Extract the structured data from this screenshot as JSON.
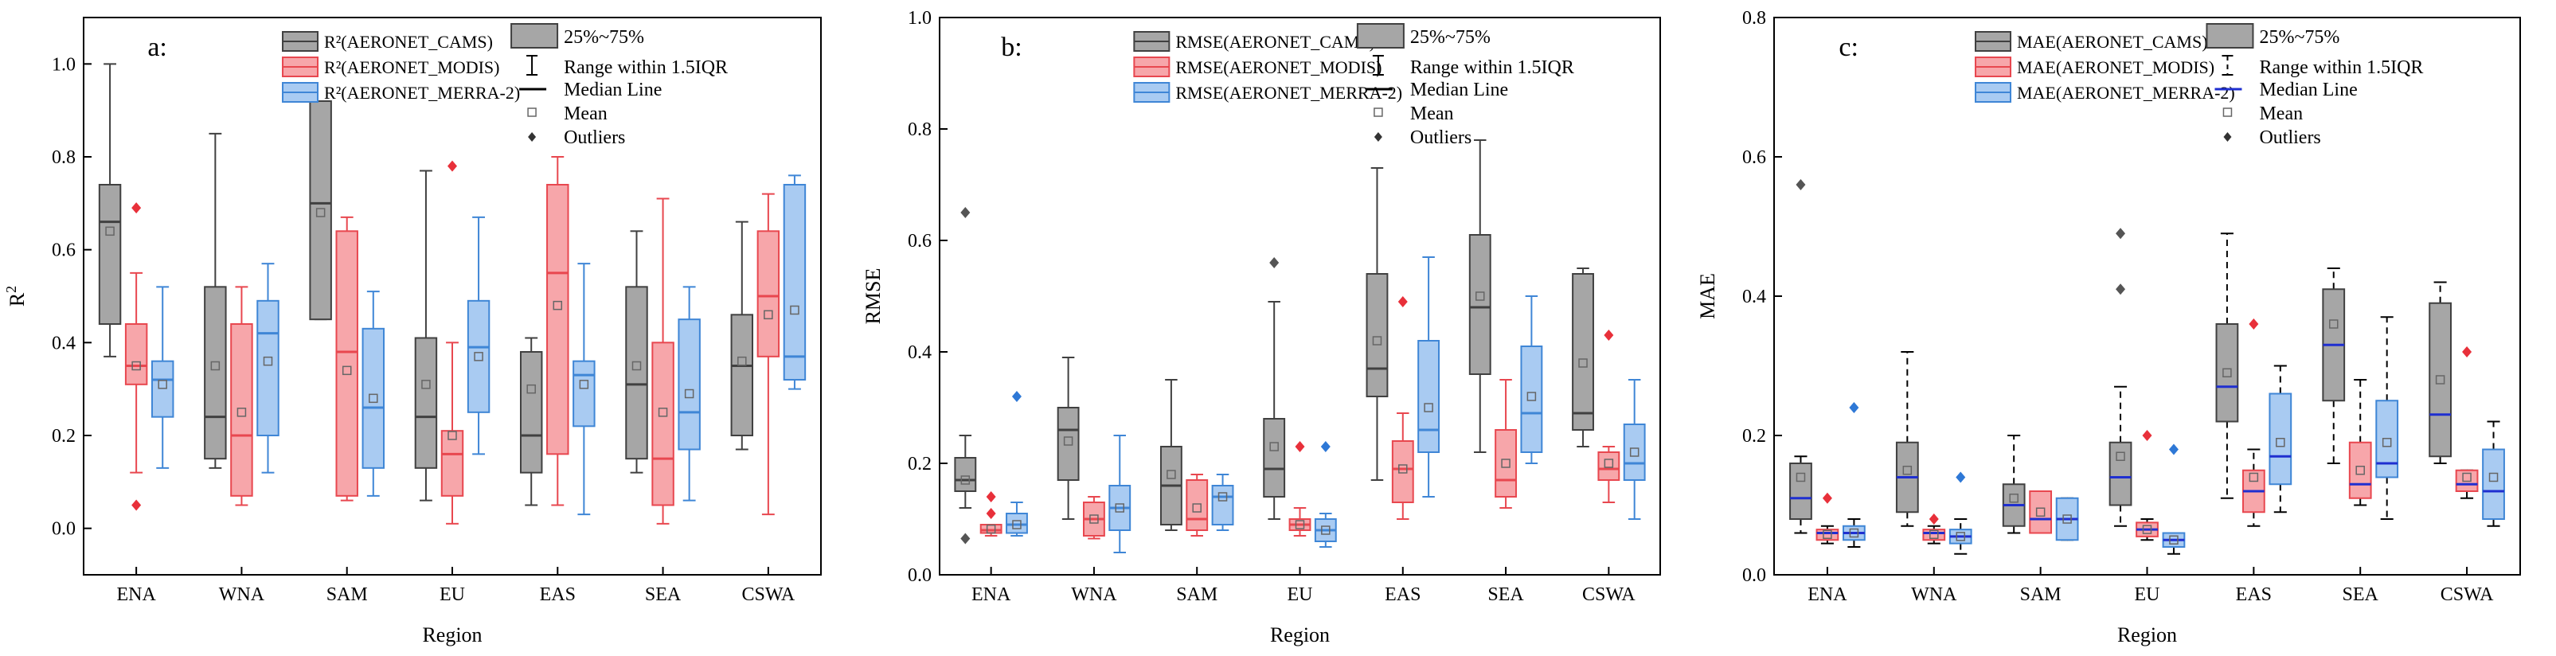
{
  "figure": {
    "xlabel": "Region",
    "regions": [
      "ENA",
      "WNA",
      "SAM",
      "EU",
      "EAS",
      "SEA",
      "CSWA"
    ],
    "legend_keys": {
      "box": "25%~75%",
      "whisker": "Range within 1.5IQR",
      "median": "Median Line",
      "mean": "Mean",
      "outlier": "Outliers"
    }
  },
  "colors": {
    "cams_fill": "#a6a6a6",
    "cams_edge": "#404040",
    "modis_fill": "#f7a6aa",
    "modis_edge": "#e8474f",
    "merra_fill": "#a9cbf2",
    "merra_edge": "#3f86d6",
    "outlier_cams": "#555555",
    "outlier_modis": "#e8303a",
    "outlier_merra": "#2e78d6",
    "median_blue": "#1f2fd0"
  },
  "chart_data": [
    {
      "type": "box",
      "panel_label": "a:",
      "ylabel": "R",
      "ylabel_sup": "2",
      "ylim": [
        -0.1,
        1.1
      ],
      "yticks": [
        "0.0",
        "0.2",
        "0.4",
        "0.6",
        "0.8",
        "1.0"
      ],
      "whisker_style": "solid",
      "median_color": "dark",
      "series_names": [
        "R²(AERONET_CAMS)",
        "R²(AERONET_MODIS)",
        "R²(AERONET_MERRA-2)"
      ],
      "series": [
        {
          "name": "CAMS",
          "boxes": [
            {
              "min": 0.37,
              "q1": 0.44,
              "med": 0.66,
              "q3": 0.74,
              "max": 1.0,
              "mean": 0.64,
              "outliers": []
            },
            {
              "min": 0.13,
              "q1": 0.15,
              "med": 0.24,
              "q3": 0.52,
              "max": 0.85,
              "mean": 0.35,
              "outliers": []
            },
            {
              "min": 0.45,
              "q1": 0.45,
              "med": 0.7,
              "q3": 0.92,
              "max": 0.92,
              "mean": 0.68,
              "outliers": []
            },
            {
              "min": 0.06,
              "q1": 0.13,
              "med": 0.24,
              "q3": 0.41,
              "max": 0.77,
              "mean": 0.31,
              "outliers": []
            },
            {
              "min": 0.05,
              "q1": 0.12,
              "med": 0.2,
              "q3": 0.38,
              "max": 0.41,
              "mean": 0.3,
              "outliers": []
            },
            {
              "min": 0.12,
              "q1": 0.15,
              "med": 0.31,
              "q3": 0.52,
              "max": 0.64,
              "mean": 0.35,
              "outliers": []
            },
            {
              "min": 0.17,
              "q1": 0.2,
              "med": 0.35,
              "q3": 0.46,
              "max": 0.66,
              "mean": 0.36,
              "outliers": []
            }
          ]
        },
        {
          "name": "MODIS",
          "boxes": [
            {
              "min": 0.12,
              "q1": 0.31,
              "med": 0.35,
              "q3": 0.44,
              "max": 0.55,
              "mean": 0.35,
              "outliers": [
                0.69,
                0.05
              ]
            },
            {
              "min": 0.05,
              "q1": 0.07,
              "med": 0.2,
              "q3": 0.44,
              "max": 0.52,
              "mean": 0.25,
              "outliers": []
            },
            {
              "min": 0.06,
              "q1": 0.07,
              "med": 0.38,
              "q3": 0.64,
              "max": 0.67,
              "mean": 0.34,
              "outliers": []
            },
            {
              "min": 0.01,
              "q1": 0.07,
              "med": 0.16,
              "q3": 0.21,
              "max": 0.4,
              "mean": 0.2,
              "outliers": [
                0.78
              ]
            },
            {
              "min": 0.05,
              "q1": 0.16,
              "med": 0.55,
              "q3": 0.74,
              "max": 0.8,
              "mean": 0.48,
              "outliers": []
            },
            {
              "min": 0.01,
              "q1": 0.05,
              "med": 0.15,
              "q3": 0.4,
              "max": 0.71,
              "mean": 0.25,
              "outliers": []
            },
            {
              "min": 0.03,
              "q1": 0.37,
              "med": 0.5,
              "q3": 0.64,
              "max": 0.72,
              "mean": 0.46,
              "outliers": []
            }
          ]
        },
        {
          "name": "MERRA-2",
          "boxes": [
            {
              "min": 0.13,
              "q1": 0.24,
              "med": 0.32,
              "q3": 0.36,
              "max": 0.52,
              "mean": 0.31,
              "outliers": []
            },
            {
              "min": 0.12,
              "q1": 0.2,
              "med": 0.42,
              "q3": 0.49,
              "max": 0.57,
              "mean": 0.36,
              "outliers": []
            },
            {
              "min": 0.07,
              "q1": 0.13,
              "med": 0.26,
              "q3": 0.43,
              "max": 0.51,
              "mean": 0.28,
              "outliers": []
            },
            {
              "min": 0.16,
              "q1": 0.25,
              "med": 0.39,
              "q3": 0.49,
              "max": 0.67,
              "mean": 0.37,
              "outliers": []
            },
            {
              "min": 0.03,
              "q1": 0.22,
              "med": 0.33,
              "q3": 0.36,
              "max": 0.57,
              "mean": 0.31,
              "outliers": []
            },
            {
              "min": 0.06,
              "q1": 0.17,
              "med": 0.25,
              "q3": 0.45,
              "max": 0.52,
              "mean": 0.29,
              "outliers": []
            },
            {
              "min": 0.3,
              "q1": 0.32,
              "med": 0.37,
              "q3": 0.74,
              "max": 0.76,
              "mean": 0.47,
              "outliers": []
            }
          ]
        }
      ]
    },
    {
      "type": "box",
      "panel_label": "b:",
      "ylabel": "RMSE",
      "ylabel_sup": "",
      "ylim": [
        0,
        1.0
      ],
      "yticks": [
        "0.0",
        "0.2",
        "0.4",
        "0.6",
        "0.8",
        "1.0"
      ],
      "whisker_style": "solid",
      "median_color": "dark",
      "series_names": [
        "RMSE(AERONET_CAMS)",
        "RMSE(AERONET_MODIS)",
        "RMSE(AERONET_MERRA-2)"
      ],
      "series": [
        {
          "name": "CAMS",
          "boxes": [
            {
              "min": 0.12,
              "q1": 0.15,
              "med": 0.17,
              "q3": 0.21,
              "max": 0.25,
              "mean": 0.17,
              "outliers": [
                0.65,
                0.065
              ]
            },
            {
              "min": 0.1,
              "q1": 0.17,
              "med": 0.26,
              "q3": 0.3,
              "max": 0.39,
              "mean": 0.24,
              "outliers": []
            },
            {
              "min": 0.08,
              "q1": 0.09,
              "med": 0.16,
              "q3": 0.23,
              "max": 0.35,
              "mean": 0.18,
              "outliers": []
            },
            {
              "min": 0.1,
              "q1": 0.14,
              "med": 0.19,
              "q3": 0.28,
              "max": 0.49,
              "mean": 0.23,
              "outliers": [
                0.56
              ]
            },
            {
              "min": 0.17,
              "q1": 0.32,
              "med": 0.37,
              "q3": 0.54,
              "max": 0.73,
              "mean": 0.42,
              "outliers": []
            },
            {
              "min": 0.22,
              "q1": 0.36,
              "med": 0.48,
              "q3": 0.61,
              "max": 0.78,
              "mean": 0.5,
              "outliers": []
            },
            {
              "min": 0.23,
              "q1": 0.26,
              "med": 0.29,
              "q3": 0.54,
              "max": 0.55,
              "mean": 0.38,
              "outliers": []
            }
          ]
        },
        {
          "name": "MODIS",
          "boxes": [
            {
              "min": 0.07,
              "q1": 0.075,
              "med": 0.08,
              "q3": 0.09,
              "max": 0.09,
              "mean": 0.082,
              "outliers": [
                0.14,
                0.11
              ]
            },
            {
              "min": 0.065,
              "q1": 0.07,
              "med": 0.1,
              "q3": 0.13,
              "max": 0.14,
              "mean": 0.1,
              "outliers": []
            },
            {
              "min": 0.07,
              "q1": 0.08,
              "med": 0.1,
              "q3": 0.17,
              "max": 0.18,
              "mean": 0.12,
              "outliers": []
            },
            {
              "min": 0.07,
              "q1": 0.08,
              "med": 0.09,
              "q3": 0.1,
              "max": 0.12,
              "mean": 0.09,
              "outliers": [
                0.23
              ]
            },
            {
              "min": 0.1,
              "q1": 0.13,
              "med": 0.19,
              "q3": 0.24,
              "max": 0.29,
              "mean": 0.19,
              "outliers": [
                0.49
              ]
            },
            {
              "min": 0.12,
              "q1": 0.14,
              "med": 0.17,
              "q3": 0.26,
              "max": 0.35,
              "mean": 0.2,
              "outliers": []
            },
            {
              "min": 0.13,
              "q1": 0.17,
              "med": 0.19,
              "q3": 0.22,
              "max": 0.23,
              "mean": 0.2,
              "outliers": [
                0.43
              ]
            }
          ]
        },
        {
          "name": "MERRA-2",
          "boxes": [
            {
              "min": 0.07,
              "q1": 0.075,
              "med": 0.09,
              "q3": 0.11,
              "max": 0.13,
              "mean": 0.09,
              "outliers": [
                0.32
              ]
            },
            {
              "min": 0.04,
              "q1": 0.08,
              "med": 0.12,
              "q3": 0.16,
              "max": 0.25,
              "mean": 0.12,
              "outliers": []
            },
            {
              "min": 0.08,
              "q1": 0.09,
              "med": 0.14,
              "q3": 0.16,
              "max": 0.18,
              "mean": 0.14,
              "outliers": []
            },
            {
              "min": 0.05,
              "q1": 0.06,
              "med": 0.08,
              "q3": 0.1,
              "max": 0.11,
              "mean": 0.08,
              "outliers": [
                0.23
              ]
            },
            {
              "min": 0.14,
              "q1": 0.22,
              "med": 0.26,
              "q3": 0.42,
              "max": 0.57,
              "mean": 0.3,
              "outliers": []
            },
            {
              "min": 0.2,
              "q1": 0.22,
              "med": 0.29,
              "q3": 0.41,
              "max": 0.5,
              "mean": 0.32,
              "outliers": []
            },
            {
              "min": 0.1,
              "q1": 0.17,
              "med": 0.2,
              "q3": 0.27,
              "max": 0.35,
              "mean": 0.22,
              "outliers": []
            }
          ]
        }
      ]
    },
    {
      "type": "box",
      "panel_label": "c:",
      "ylabel": "MAE",
      "ylabel_sup": "",
      "ylim": [
        0,
        0.8
      ],
      "yticks": [
        "0.0",
        "0.2",
        "0.4",
        "0.6",
        "0.8"
      ],
      "whisker_style": "dashed",
      "median_color": "blue",
      "series_names": [
        "MAE(AERONET_CAMS)",
        "MAE(AERONET_MODIS)",
        "MAE(AERONET_MERRA-2)"
      ],
      "series": [
        {
          "name": "CAMS",
          "boxes": [
            {
              "min": 0.06,
              "q1": 0.08,
              "med": 0.11,
              "q3": 0.16,
              "max": 0.17,
              "mean": 0.14,
              "outliers": [
                0.56
              ]
            },
            {
              "min": 0.07,
              "q1": 0.09,
              "med": 0.14,
              "q3": 0.19,
              "max": 0.32,
              "mean": 0.15,
              "outliers": []
            },
            {
              "min": 0.06,
              "q1": 0.07,
              "med": 0.1,
              "q3": 0.13,
              "max": 0.2,
              "mean": 0.11,
              "outliers": []
            },
            {
              "min": 0.07,
              "q1": 0.1,
              "med": 0.14,
              "q3": 0.19,
              "max": 0.27,
              "mean": 0.17,
              "outliers": [
                0.49,
                0.41
              ]
            },
            {
              "min": 0.11,
              "q1": 0.22,
              "med": 0.27,
              "q3": 0.36,
              "max": 0.49,
              "mean": 0.29,
              "outliers": []
            },
            {
              "min": 0.16,
              "q1": 0.25,
              "med": 0.33,
              "q3": 0.41,
              "max": 0.44,
              "mean": 0.36,
              "outliers": []
            },
            {
              "min": 0.16,
              "q1": 0.17,
              "med": 0.23,
              "q3": 0.39,
              "max": 0.42,
              "mean": 0.28,
              "outliers": []
            }
          ]
        },
        {
          "name": "MODIS",
          "boxes": [
            {
              "min": 0.045,
              "q1": 0.05,
              "med": 0.06,
              "q3": 0.065,
              "max": 0.07,
              "mean": 0.058,
              "outliers": [
                0.11
              ]
            },
            {
              "min": 0.045,
              "q1": 0.05,
              "med": 0.06,
              "q3": 0.065,
              "max": 0.07,
              "mean": 0.058,
              "outliers": [
                0.08
              ]
            },
            {
              "min": 0.06,
              "q1": 0.06,
              "med": 0.08,
              "q3": 0.12,
              "max": 0.12,
              "mean": 0.09,
              "outliers": []
            },
            {
              "min": 0.05,
              "q1": 0.055,
              "med": 0.065,
              "q3": 0.075,
              "max": 0.08,
              "mean": 0.065,
              "outliers": [
                0.2
              ]
            },
            {
              "min": 0.07,
              "q1": 0.09,
              "med": 0.12,
              "q3": 0.15,
              "max": 0.18,
              "mean": 0.14,
              "outliers": [
                0.36
              ]
            },
            {
              "min": 0.1,
              "q1": 0.11,
              "med": 0.13,
              "q3": 0.19,
              "max": 0.28,
              "mean": 0.15,
              "outliers": []
            },
            {
              "min": 0.11,
              "q1": 0.12,
              "med": 0.13,
              "q3": 0.15,
              "max": 0.15,
              "mean": 0.14,
              "outliers": [
                0.32
              ]
            }
          ]
        },
        {
          "name": "MERRA-2",
          "boxes": [
            {
              "min": 0.04,
              "q1": 0.05,
              "med": 0.06,
              "q3": 0.07,
              "max": 0.08,
              "mean": 0.06,
              "outliers": [
                0.24
              ]
            },
            {
              "min": 0.03,
              "q1": 0.045,
              "med": 0.055,
              "q3": 0.065,
              "max": 0.08,
              "mean": 0.055,
              "outliers": [
                0.14
              ]
            },
            {
              "min": 0.05,
              "q1": 0.05,
              "med": 0.08,
              "q3": 0.11,
              "max": 0.11,
              "mean": 0.08,
              "outliers": []
            },
            {
              "min": 0.03,
              "q1": 0.04,
              "med": 0.05,
              "q3": 0.06,
              "max": 0.06,
              "mean": 0.05,
              "outliers": [
                0.18
              ]
            },
            {
              "min": 0.09,
              "q1": 0.13,
              "med": 0.17,
              "q3": 0.26,
              "max": 0.3,
              "mean": 0.19,
              "outliers": []
            },
            {
              "min": 0.08,
              "q1": 0.14,
              "med": 0.16,
              "q3": 0.25,
              "max": 0.37,
              "mean": 0.19,
              "outliers": []
            },
            {
              "min": 0.07,
              "q1": 0.08,
              "med": 0.12,
              "q3": 0.18,
              "max": 0.22,
              "mean": 0.14,
              "outliers": []
            }
          ]
        }
      ]
    }
  ]
}
